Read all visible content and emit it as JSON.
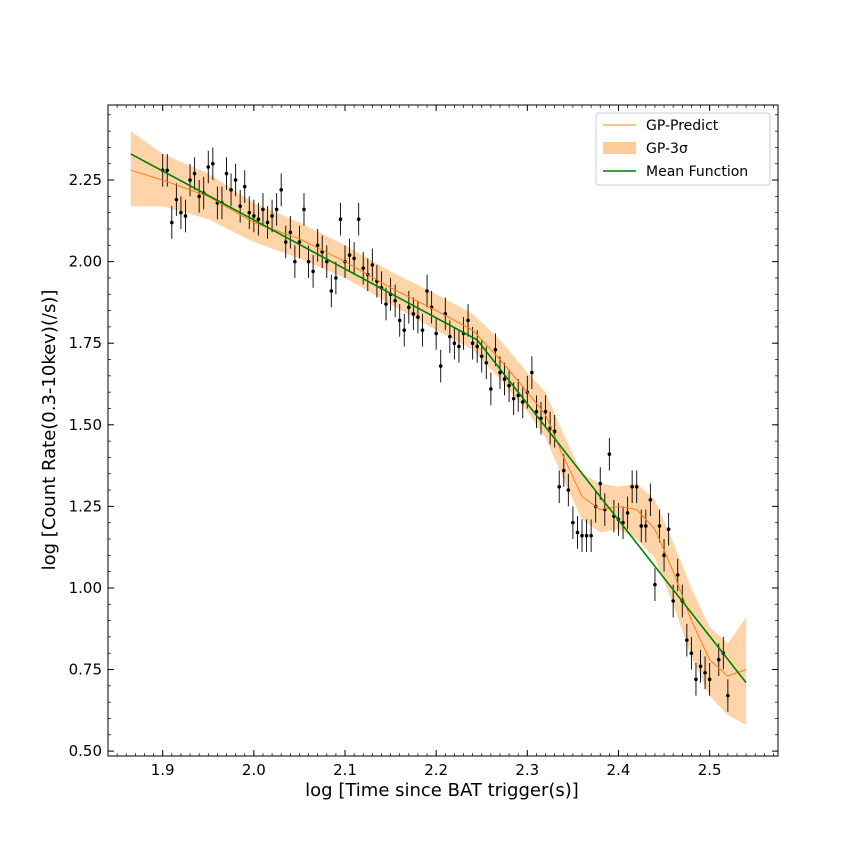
{
  "chart_data": {
    "type": "line",
    "xlabel": "log [Time since BAT trigger(s)]",
    "ylabel": "log [Count Rate(0.3-10kev)(/s)]",
    "xlim": [
      1.84,
      2.575
    ],
    "ylim": [
      0.485,
      2.48
    ],
    "xticks": [
      1.9,
      2.0,
      2.1,
      2.2,
      2.3,
      2.4,
      2.5
    ],
    "xtick_labels": [
      "1.9",
      "2.0",
      "2.1",
      "2.2",
      "2.3",
      "2.4",
      "2.5"
    ],
    "yticks": [
      0.5,
      0.75,
      1.0,
      1.25,
      1.5,
      1.75,
      2.0,
      2.25
    ],
    "ytick_labels": [
      "0.50",
      "0.75",
      "1.00",
      "1.25",
      "1.50",
      "1.75",
      "2.00",
      "2.25"
    ],
    "minor_ticks": true,
    "grid": false,
    "legend_position": "top-right",
    "legend": [
      "GP-Predict",
      "GP-3σ",
      "Mean Function"
    ],
    "colors": {
      "gp_predict": "#ff7f0e",
      "gp_band": "#ffcc99",
      "mean_function": "#008000",
      "data_points": "#000000"
    },
    "series": [
      {
        "name": "GP-Predict",
        "x": [
          1.865,
          1.9,
          1.95,
          2.0,
          2.05,
          2.1,
          2.15,
          2.2,
          2.24,
          2.27,
          2.3,
          2.32,
          2.34,
          2.36,
          2.38,
          2.4,
          2.42,
          2.44,
          2.46,
          2.48,
          2.5,
          2.52,
          2.54
        ],
        "y": [
          2.28,
          2.25,
          2.2,
          2.12,
          2.07,
          2.0,
          1.92,
          1.85,
          1.79,
          1.7,
          1.6,
          1.53,
          1.4,
          1.28,
          1.24,
          1.25,
          1.24,
          1.18,
          1.05,
          0.9,
          0.78,
          0.73,
          0.75
        ]
      },
      {
        "name": "GP-3σ",
        "x": [
          1.865,
          1.9,
          1.95,
          2.0,
          2.05,
          2.1,
          2.15,
          2.2,
          2.24,
          2.27,
          2.3,
          2.32,
          2.34,
          2.36,
          2.38,
          2.4,
          2.42,
          2.44,
          2.46,
          2.48,
          2.5,
          2.52,
          2.54
        ],
        "upper": [
          2.4,
          2.33,
          2.27,
          2.18,
          2.12,
          2.05,
          1.97,
          1.9,
          1.84,
          1.76,
          1.66,
          1.6,
          1.47,
          1.35,
          1.32,
          1.31,
          1.32,
          1.27,
          1.14,
          1.0,
          0.88,
          0.83,
          0.91
        ],
        "lower": [
          2.17,
          2.17,
          2.13,
          2.06,
          2.01,
          1.95,
          1.87,
          1.79,
          1.73,
          1.64,
          1.54,
          1.46,
          1.33,
          1.21,
          1.17,
          1.18,
          1.15,
          1.09,
          0.95,
          0.79,
          0.67,
          0.61,
          0.58
        ]
      },
      {
        "name": "Mean Function",
        "x": [
          1.865,
          2.245,
          2.54
        ],
        "y": [
          2.33,
          1.76,
          0.71
        ]
      }
    ],
    "points": [
      [
        1.9,
        2.28
      ],
      [
        1.905,
        2.28
      ],
      [
        1.91,
        2.12
      ],
      [
        1.915,
        2.19
      ],
      [
        1.92,
        2.15
      ],
      [
        1.925,
        2.14
      ],
      [
        1.93,
        2.25
      ],
      [
        1.935,
        2.27
      ],
      [
        1.94,
        2.2
      ],
      [
        1.945,
        2.21
      ],
      [
        1.95,
        2.29
      ],
      [
        1.955,
        2.3
      ],
      [
        1.96,
        2.18
      ],
      [
        1.965,
        2.18
      ],
      [
        1.97,
        2.27
      ],
      [
        1.975,
        2.22
      ],
      [
        1.98,
        2.25
      ],
      [
        1.985,
        2.17
      ],
      [
        1.99,
        2.23
      ],
      [
        1.995,
        2.15
      ],
      [
        2.0,
        2.14
      ],
      [
        2.005,
        2.13
      ],
      [
        2.01,
        2.16
      ],
      [
        2.015,
        2.12
      ],
      [
        2.02,
        2.14
      ],
      [
        2.025,
        2.16
      ],
      [
        2.03,
        2.22
      ],
      [
        2.035,
        2.06
      ],
      [
        2.04,
        2.09
      ],
      [
        2.045,
        2.0
      ],
      [
        2.05,
        2.06
      ],
      [
        2.055,
        2.16
      ],
      [
        2.06,
        2.0
      ],
      [
        2.065,
        1.97
      ],
      [
        2.07,
        2.05
      ],
      [
        2.075,
        2.03
      ],
      [
        2.08,
        2.0
      ],
      [
        2.085,
        1.91
      ],
      [
        2.09,
        1.95
      ],
      [
        2.095,
        2.13
      ],
      [
        2.1,
        2.0
      ],
      [
        2.105,
        2.02
      ],
      [
        2.11,
        2.01
      ],
      [
        2.115,
        2.13
      ],
      [
        2.12,
        1.98
      ],
      [
        2.125,
        1.96
      ],
      [
        2.13,
        1.99
      ],
      [
        2.135,
        1.94
      ],
      [
        2.14,
        1.92
      ],
      [
        2.145,
        1.87
      ],
      [
        2.15,
        1.9
      ],
      [
        2.155,
        1.88
      ],
      [
        2.16,
        1.82
      ],
      [
        2.165,
        1.79
      ],
      [
        2.17,
        1.86
      ],
      [
        2.175,
        1.84
      ],
      [
        2.18,
        1.83
      ],
      [
        2.185,
        1.79
      ],
      [
        2.19,
        1.91
      ],
      [
        2.195,
        1.86
      ],
      [
        2.2,
        1.78
      ],
      [
        2.205,
        1.68
      ],
      [
        2.21,
        1.84
      ],
      [
        2.215,
        1.77
      ],
      [
        2.22,
        1.75
      ],
      [
        2.225,
        1.74
      ],
      [
        2.23,
        1.78
      ],
      [
        2.235,
        1.82
      ],
      [
        2.24,
        1.75
      ],
      [
        2.245,
        1.74
      ],
      [
        2.25,
        1.71
      ],
      [
        2.255,
        1.69
      ],
      [
        2.26,
        1.61
      ],
      [
        2.265,
        1.73
      ],
      [
        2.27,
        1.66
      ],
      [
        2.275,
        1.64
      ],
      [
        2.28,
        1.62
      ],
      [
        2.285,
        1.58
      ],
      [
        2.29,
        1.59
      ],
      [
        2.295,
        1.57
      ],
      [
        2.3,
        1.6
      ],
      [
        2.305,
        1.66
      ],
      [
        2.31,
        1.54
      ],
      [
        2.315,
        1.52
      ],
      [
        2.32,
        1.54
      ],
      [
        2.325,
        1.49
      ],
      [
        2.33,
        1.48
      ],
      [
        2.335,
        1.31
      ],
      [
        2.34,
        1.36
      ],
      [
        2.345,
        1.3
      ],
      [
        2.35,
        1.2
      ],
      [
        2.355,
        1.17
      ],
      [
        2.36,
        1.16
      ],
      [
        2.365,
        1.16
      ],
      [
        2.37,
        1.16
      ],
      [
        2.375,
        1.25
      ],
      [
        2.38,
        1.32
      ],
      [
        2.385,
        1.24
      ],
      [
        2.39,
        1.41
      ],
      [
        2.395,
        1.22
      ],
      [
        2.4,
        1.21
      ],
      [
        2.405,
        1.2
      ],
      [
        2.41,
        1.23
      ],
      [
        2.415,
        1.31
      ],
      [
        2.42,
        1.31
      ],
      [
        2.425,
        1.19
      ],
      [
        2.43,
        1.19
      ],
      [
        2.435,
        1.27
      ],
      [
        2.44,
        1.01
      ],
      [
        2.445,
        1.19
      ],
      [
        2.45,
        1.1
      ],
      [
        2.455,
        1.18
      ],
      [
        2.46,
        0.96
      ],
      [
        2.465,
        1.04
      ],
      [
        2.47,
        0.96
      ],
      [
        2.475,
        0.84
      ],
      [
        2.48,
        0.8
      ],
      [
        2.485,
        0.72
      ],
      [
        2.49,
        0.76
      ],
      [
        2.495,
        0.74
      ],
      [
        2.5,
        0.72
      ],
      [
        2.51,
        0.78
      ],
      [
        2.515,
        0.8
      ],
      [
        2.52,
        0.67
      ]
    ],
    "error_bar_y": 0.05
  }
}
